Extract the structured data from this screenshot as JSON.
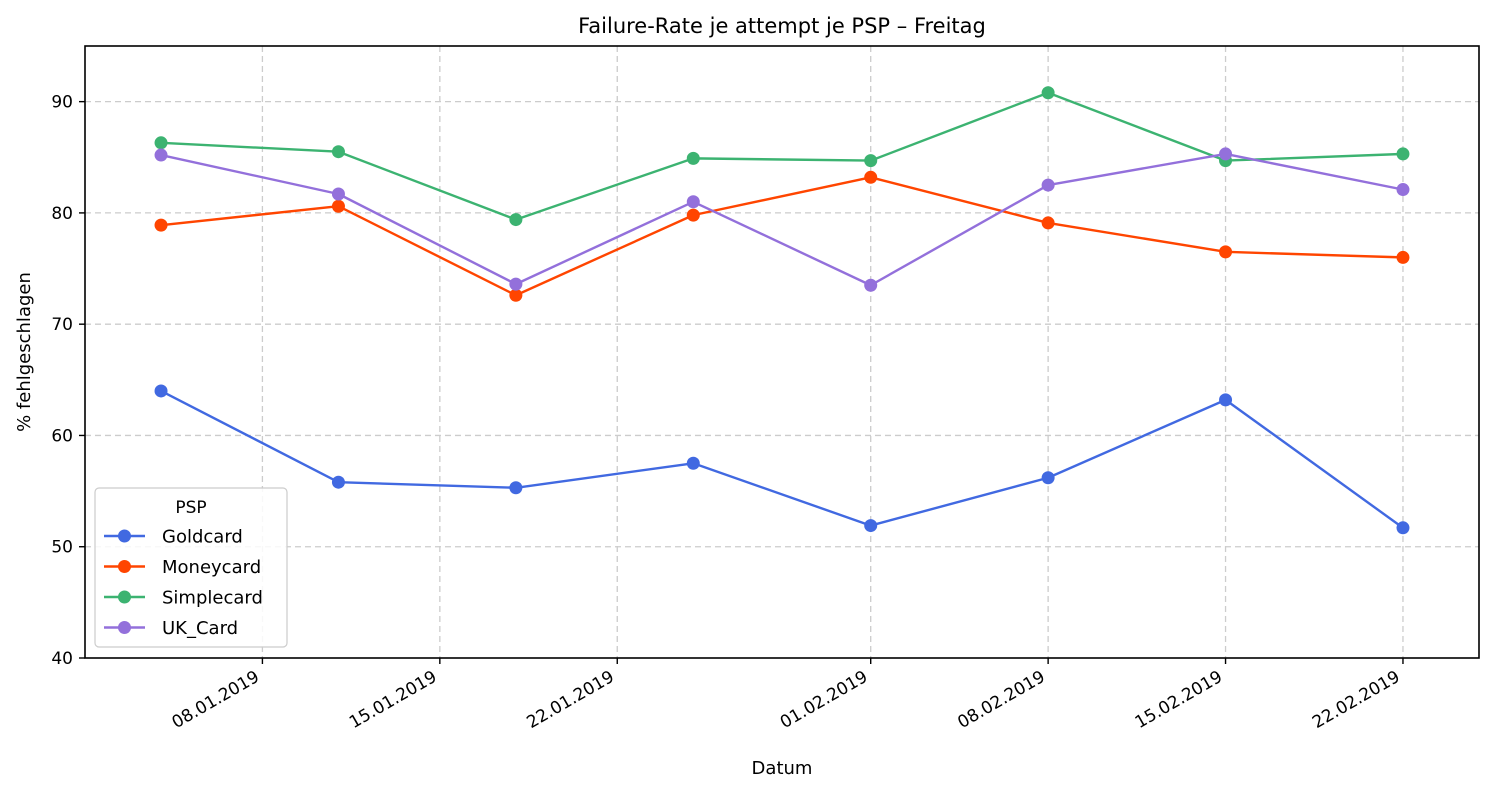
{
  "chart_data": {
    "type": "line",
    "title": "Failure-Rate je attempt je PSP – Freitag",
    "xlabel": "Datum",
    "ylabel": "% fehlgeschlagen",
    "x": [
      "2019-01-04",
      "2019-01-11",
      "2019-01-18",
      "2019-01-25",
      "2019-02-01",
      "2019-02-08",
      "2019-02-15",
      "2019-02-22"
    ],
    "xlim": [
      "2019-01-01",
      "2019-02-25"
    ],
    "ylim": [
      40,
      95
    ],
    "x_ticks": [
      {
        "date": "2019-01-08",
        "label": "08.01.2019"
      },
      {
        "date": "2019-01-15",
        "label": "15.01.2019"
      },
      {
        "date": "2019-01-22",
        "label": "22.01.2019"
      },
      {
        "date": "2019-02-01",
        "label": "01.02.2019"
      },
      {
        "date": "2019-02-08",
        "label": "08.02.2019"
      },
      {
        "date": "2019-02-15",
        "label": "15.02.2019"
      },
      {
        "date": "2019-02-22",
        "label": "22.02.2019"
      }
    ],
    "y_ticks": [
      40,
      50,
      60,
      70,
      80,
      90
    ],
    "grid": true,
    "legend": {
      "title": "PSP",
      "placement": "lower-left"
    },
    "series": [
      {
        "name": "Goldcard",
        "color": "#4169e1",
        "values": [
          64.0,
          55.8,
          55.3,
          57.5,
          51.9,
          56.2,
          63.2,
          51.7
        ]
      },
      {
        "name": "Moneycard",
        "color": "#ff4500",
        "values": [
          78.9,
          80.6,
          72.6,
          79.8,
          83.2,
          79.1,
          76.5,
          76.0
        ]
      },
      {
        "name": "Simplecard",
        "color": "#3cb371",
        "values": [
          86.3,
          85.5,
          79.4,
          84.9,
          84.7,
          90.8,
          84.7,
          85.3
        ]
      },
      {
        "name": "UK_Card",
        "color": "#9370db",
        "values": [
          85.2,
          81.7,
          73.6,
          81.0,
          73.5,
          82.5,
          85.3,
          82.1
        ]
      }
    ]
  }
}
